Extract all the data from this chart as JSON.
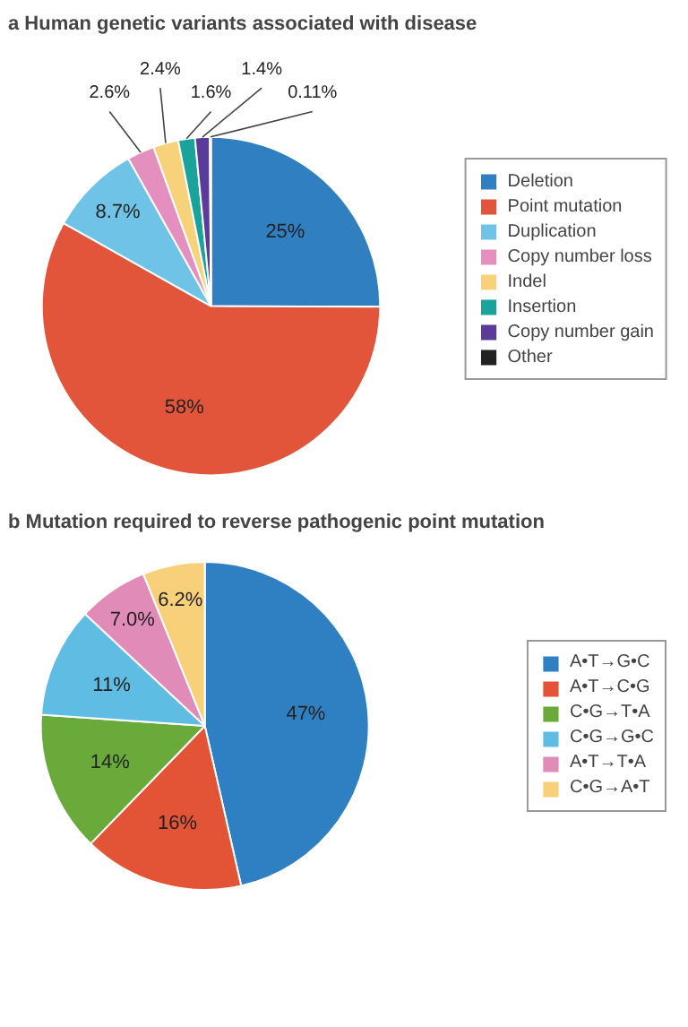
{
  "chart_data": [
    {
      "type": "pie",
      "title": "a  Human genetic variants associated with disease",
      "categories": [
        "Deletion",
        "Point mutation",
        "Duplication",
        "Copy number loss",
        "Indel",
        "Insertion",
        "Copy number gain",
        "Other"
      ],
      "values": [
        25,
        58,
        8.7,
        2.6,
        2.4,
        1.6,
        1.4,
        0.11
      ],
      "colors": [
        "#2f7fc1",
        "#e2553a",
        "#6fc3e6",
        "#e58fbf",
        "#f8d27a",
        "#1aa39a",
        "#5b3b9a",
        "#222222"
      ],
      "value_labels": [
        "25%",
        "58%",
        "8.7%",
        "2.6%",
        "2.4%",
        "1.6%",
        "1.4%",
        "0.11%"
      ],
      "legend": "right"
    },
    {
      "type": "pie",
      "title": "b  Mutation required to reverse pathogenic point mutation",
      "categories": [
        "A•T→G•C",
        "A•T→C•G",
        "C•G→T•A",
        "C•G→G•C",
        "A•T→T•A",
        "C•G→A•T"
      ],
      "values": [
        47,
        16,
        14,
        11,
        7.0,
        6.2
      ],
      "colors": [
        "#2f80c3",
        "#e35336",
        "#6aaa3a",
        "#5fbde3",
        "#e08bb8",
        "#f8d07a"
      ],
      "value_labels": [
        "47%",
        "16%",
        "14%",
        "11%",
        "7.0%",
        "6.2%"
      ],
      "legend": "right"
    }
  ]
}
